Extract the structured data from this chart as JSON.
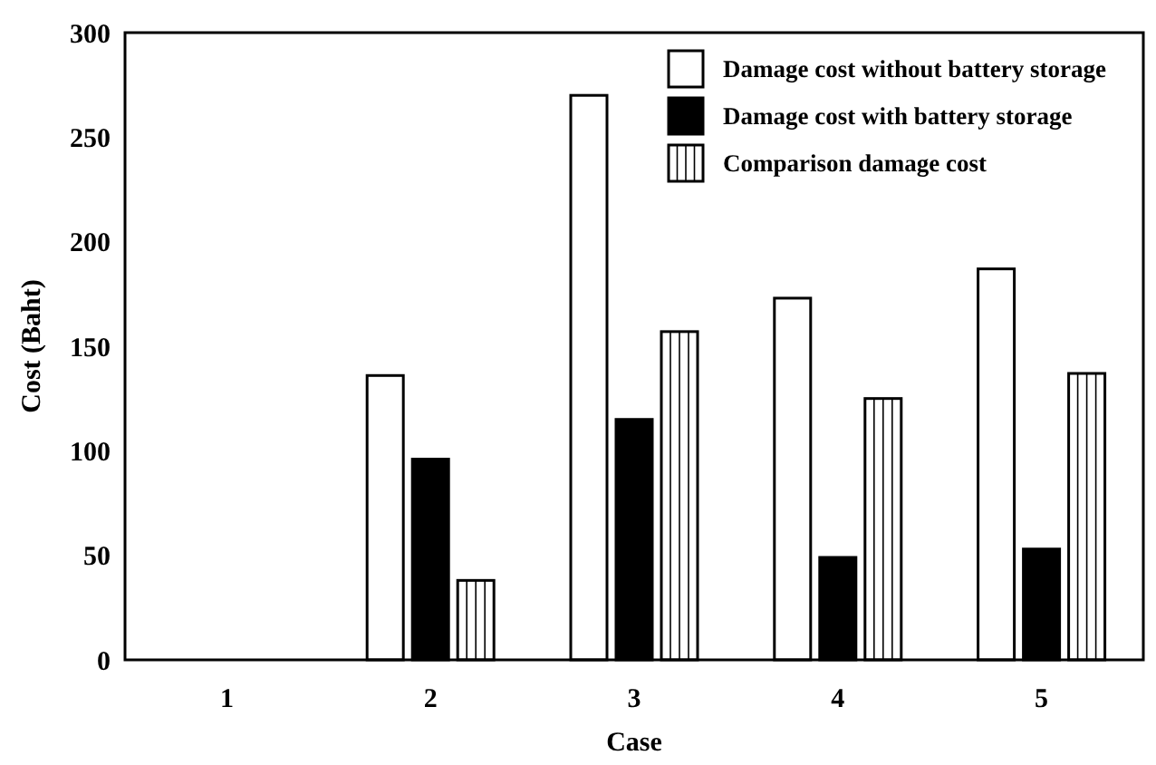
{
  "chart_data": {
    "type": "bar",
    "xlabel": "Case",
    "ylabel": "Cost (Baht)",
    "categories": [
      "1",
      "2",
      "3",
      "4",
      "5"
    ],
    "series": [
      {
        "name": "Damage cost without battery storage",
        "color": "#ffffff",
        "values": [
          0,
          136,
          270,
          173,
          187
        ]
      },
      {
        "name": "Damage cost with battery storage",
        "color": "#000000",
        "values": [
          0,
          96,
          115,
          49,
          53
        ]
      },
      {
        "name": "Comparison damage cost",
        "color": "#ffffff",
        "values": [
          0,
          38,
          157,
          125,
          137
        ]
      }
    ],
    "ylim": [
      0,
      300
    ],
    "yticks": [
      0,
      50,
      100,
      150,
      200,
      250,
      300
    ],
    "grid": false,
    "legend": "top right"
  }
}
